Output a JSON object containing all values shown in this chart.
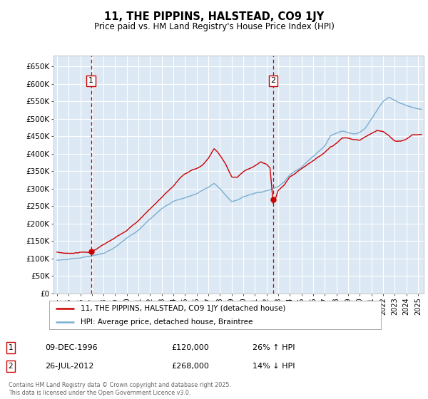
{
  "title": "11, THE PIPPINS, HALSTEAD, CO9 1JY",
  "subtitle": "Price paid vs. HM Land Registry's House Price Index (HPI)",
  "fig_bg_color": "#ffffff",
  "plot_bg_color": "#dce9f5",
  "grid_color": "#ffffff",
  "red_line_color": "#cc0000",
  "blue_line_color": "#7aadcf",
  "marker1_x": 1996.92,
  "marker1_y": 120000,
  "marker2_x": 2012.57,
  "marker2_y": 268000,
  "legend_line1": "11, THE PIPPINS, HALSTEAD, CO9 1JY (detached house)",
  "legend_line2": "HPI: Average price, detached house, Braintree",
  "footer": "Contains HM Land Registry data © Crown copyright and database right 2025.\nThis data is licensed under the Open Government Licence v3.0.",
  "ylim": [
    0,
    680000
  ],
  "xlim_start": 1993.7,
  "xlim_end": 2025.5,
  "yticks": [
    0,
    50000,
    100000,
    150000,
    200000,
    250000,
    300000,
    350000,
    400000,
    450000,
    500000,
    550000,
    600000,
    650000
  ],
  "ytick_labels": [
    "£0",
    "£50K",
    "£100K",
    "£150K",
    "£200K",
    "£250K",
    "£300K",
    "£350K",
    "£400K",
    "£450K",
    "£500K",
    "£550K",
    "£600K",
    "£650K"
  ],
  "xticks": [
    1994,
    1995,
    1996,
    1997,
    1998,
    1999,
    2000,
    2001,
    2002,
    2003,
    2004,
    2005,
    2006,
    2007,
    2008,
    2009,
    2010,
    2011,
    2012,
    2013,
    2014,
    2015,
    2016,
    2017,
    2018,
    2019,
    2020,
    2021,
    2022,
    2023,
    2024,
    2025
  ]
}
